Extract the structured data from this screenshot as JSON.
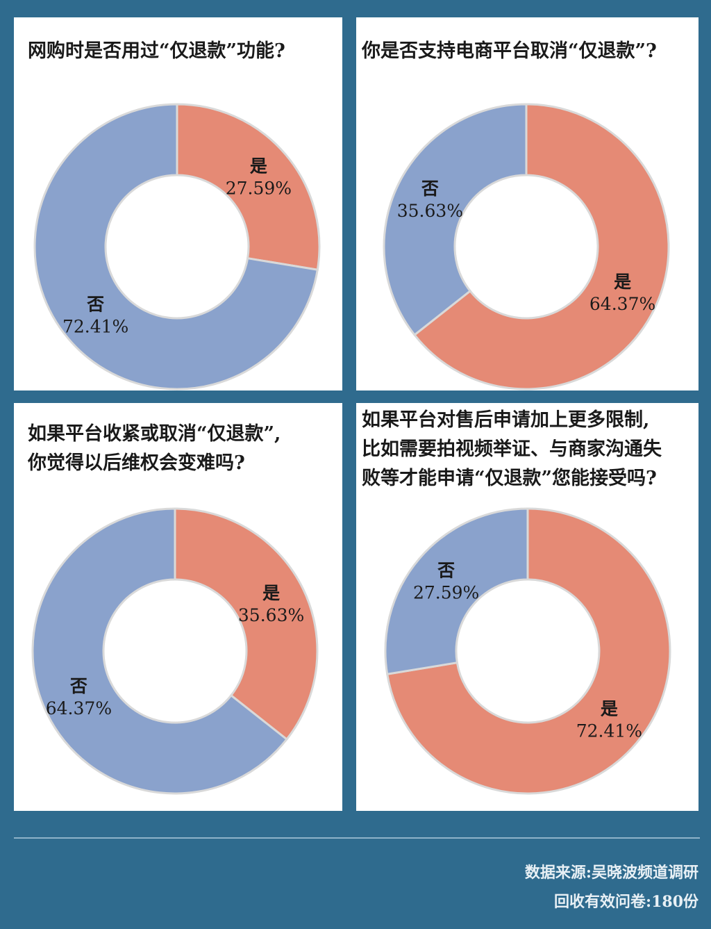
{
  "colors": {
    "yes": "#e58a75",
    "no": "#8aa2cc",
    "background": "#2f6b8e"
  },
  "chart_data": [
    {
      "type": "pie",
      "title": "网购时是否用过“仅退款”功能?",
      "slices": [
        {
          "label": "是",
          "value": 27.59,
          "text": "27.59%"
        },
        {
          "label": "否",
          "value": 72.41,
          "text": "72.41%"
        }
      ]
    },
    {
      "type": "pie",
      "title": "你是否支持电商平台取消“仅退款”?",
      "slices": [
        {
          "label": "是",
          "value": 64.37,
          "text": "64.37%"
        },
        {
          "label": "否",
          "value": 35.63,
          "text": "35.63%"
        }
      ]
    },
    {
      "type": "pie",
      "title_lines": [
        "如果平台收紧或取消“仅退款”,",
        "你觉得以后维权会变难吗?"
      ],
      "slices": [
        {
          "label": "是",
          "value": 35.63,
          "text": "35.63%"
        },
        {
          "label": "否",
          "value": 64.37,
          "text": "64.37%"
        }
      ]
    },
    {
      "type": "pie",
      "title_lines": [
        "如果平台对售后申请加上更多限制,",
        "比如需要拍视频举证、与商家沟通失",
        "败等才能申请“仅退款”您能接受吗?"
      ],
      "slices": [
        {
          "label": "是",
          "value": 72.41,
          "text": "72.41%"
        },
        {
          "label": "否",
          "value": 27.59,
          "text": "27.59%"
        }
      ]
    }
  ],
  "footer": {
    "source": "数据来源:吴晓波频道调研",
    "sample": "回收有效问卷:180份"
  }
}
